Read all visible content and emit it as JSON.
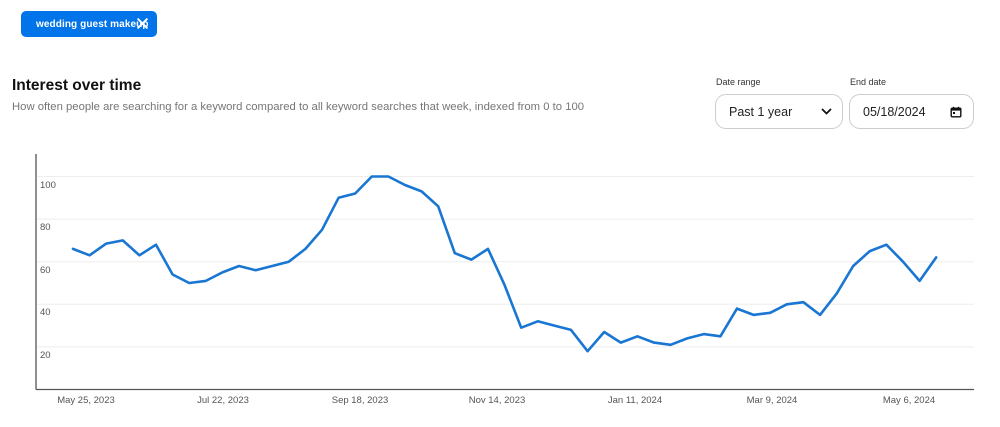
{
  "filter_chip": {
    "label": "wedding guest makeup",
    "close_icon": "close-icon"
  },
  "header": {
    "title": "Interest over time",
    "subtitle": "How often people are searching for a keyword compared to all keyword searches that week, indexed from 0 to 100"
  },
  "controls": {
    "date_range": {
      "label": "Date range",
      "value": "Past 1 year",
      "icon": "chevron-down-icon"
    },
    "end_date": {
      "label": "End date",
      "value": "05/18/2024",
      "icon": "calendar-icon"
    }
  },
  "colors": {
    "accent": "#0074e8",
    "line": "#1976d2",
    "grid": "#eeeeee",
    "axis": "#555555"
  },
  "chart_data": {
    "type": "line",
    "title": "Interest over time",
    "subtitle": "How often people are searching for a keyword compared to all keyword searches that week, indexed from 0 to 100",
    "xlabel": "",
    "ylabel": "",
    "ylim": [
      0,
      110
    ],
    "grid": true,
    "legend": "none",
    "y_ticks": [
      100,
      80,
      60,
      40,
      20
    ],
    "x_tick_labels": [
      "May 25, 2023",
      "Jul 22, 2023",
      "Sep 18, 2023",
      "Nov 14, 2023",
      "Jan 11, 2024",
      "Mar 9, 2024",
      "May 6, 2024"
    ],
    "series": [
      {
        "name": "wedding guest makeup",
        "values": [
          66,
          63,
          68.5,
          70,
          63,
          68,
          54,
          50,
          51,
          55,
          58,
          56,
          58,
          60,
          66,
          75,
          90,
          92,
          100,
          100,
          96,
          93,
          86,
          64,
          61,
          66,
          49,
          29,
          32,
          30,
          28,
          18,
          27,
          22,
          25,
          22,
          21,
          24,
          26,
          25,
          38,
          35,
          36,
          40,
          41,
          35,
          45,
          58,
          65,
          68,
          60,
          51,
          62
        ]
      }
    ]
  }
}
